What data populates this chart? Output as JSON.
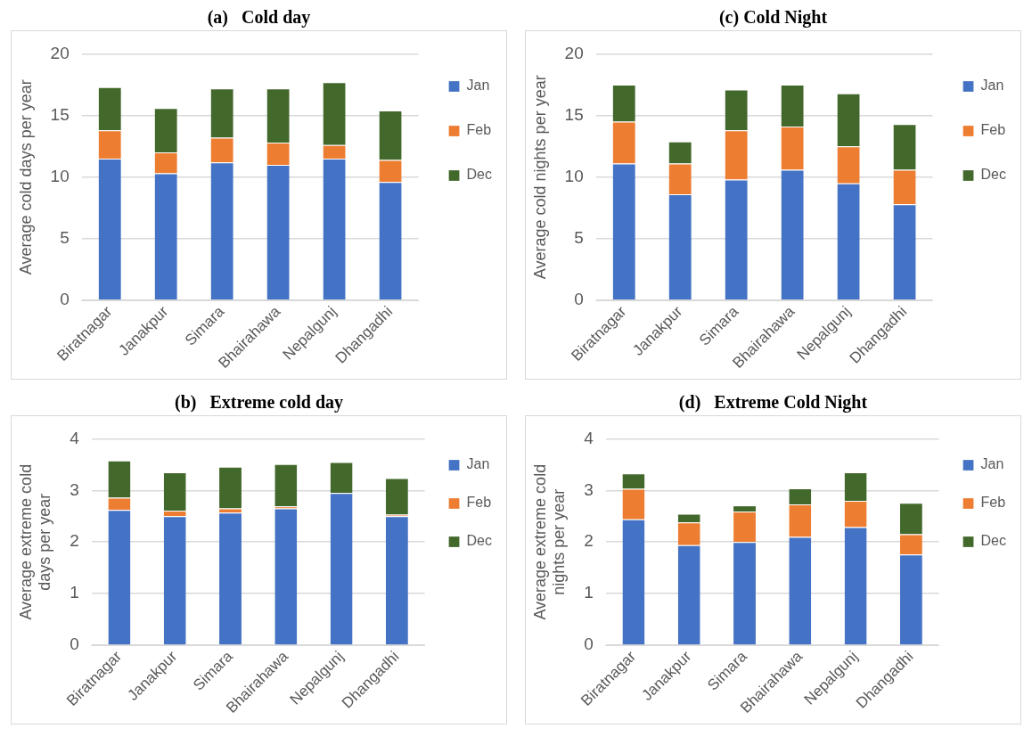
{
  "chart_data": [
    {
      "type": "bar",
      "title": "(a)   Cold day",
      "ylabel": "Average cold days per year",
      "categories": [
        "Biratnagar",
        "Janakpur",
        "Simara",
        "Bhairahawa",
        "Nepalgunj",
        "Dhangadhi"
      ],
      "stacked": true,
      "ylim": [
        0,
        20
      ],
      "yticks": [
        0,
        5,
        10,
        15,
        20
      ],
      "grid": "y",
      "legend": "right",
      "series": [
        {
          "name": "Jan",
          "color": "#4472c4",
          "values": [
            11.5,
            10.3,
            11.2,
            11.0,
            11.5,
            9.6
          ]
        },
        {
          "name": "Feb",
          "color": "#ed7d31",
          "values": [
            2.3,
            1.7,
            2.0,
            1.8,
            1.1,
            1.8
          ]
        },
        {
          "name": "Dec",
          "color": "#43682b",
          "values": [
            3.5,
            3.6,
            4.0,
            4.4,
            5.1,
            4.0
          ]
        }
      ]
    },
    {
      "type": "bar",
      "title": "(c) Cold Night",
      "ylabel": "Average cold nights per year",
      "categories": [
        "Biratnagar",
        "Janakpur",
        "Simara",
        "Bhairahawa",
        "Nepalgunj",
        "Dhangadhi"
      ],
      "stacked": true,
      "ylim": [
        0,
        20
      ],
      "yticks": [
        0,
        5,
        10,
        15,
        20
      ],
      "grid": "y",
      "legend": "right",
      "series": [
        {
          "name": "Jan",
          "color": "#4472c4",
          "values": [
            11.1,
            8.6,
            9.8,
            10.6,
            9.5,
            7.8
          ]
        },
        {
          "name": "Feb",
          "color": "#ed7d31",
          "values": [
            3.4,
            2.5,
            4.0,
            3.5,
            3.0,
            2.8
          ]
        },
        {
          "name": "Dec",
          "color": "#43682b",
          "values": [
            3.0,
            1.8,
            3.3,
            3.4,
            4.3,
            3.7
          ]
        }
      ]
    },
    {
      "type": "bar",
      "title": "(b)   Extreme cold day",
      "ylabel": "Average extreme cold days per year",
      "categories": [
        "Biratnagar",
        "Janakpur",
        "Simara",
        "Bhairahawa",
        "Nepalgunj",
        "Dhangadhi"
      ],
      "stacked": true,
      "ylim": [
        0,
        4
      ],
      "yticks": [
        0,
        1,
        2,
        3,
        4
      ],
      "grid": "y",
      "legend": "right",
      "series": [
        {
          "name": "Jan",
          "color": "#4472c4",
          "values": [
            2.62,
            2.5,
            2.57,
            2.65,
            2.95,
            2.5
          ]
        },
        {
          "name": "Feb",
          "color": "#ed7d31",
          "values": [
            0.24,
            0.11,
            0.08,
            0.04,
            0,
            0.03
          ]
        },
        {
          "name": "Dec",
          "color": "#43682b",
          "values": [
            0.72,
            0.74,
            0.81,
            0.82,
            0.6,
            0.71
          ]
        }
      ]
    },
    {
      "type": "bar",
      "title": "(d)   Extreme Cold Night",
      "ylabel": "Average extreme cold nights per year",
      "categories": [
        "Biratnagar",
        "Janakpur",
        "Simara",
        "Bhairahawa",
        "Nepalgunj",
        "Dhangadhi"
      ],
      "stacked": true,
      "ylim": [
        0,
        4
      ],
      "yticks": [
        0,
        1,
        2,
        3,
        4
      ],
      "grid": "y",
      "legend": "right",
      "series": [
        {
          "name": "Jan",
          "color": "#4472c4",
          "values": [
            2.44,
            1.94,
            2.0,
            2.1,
            2.29,
            1.76
          ]
        },
        {
          "name": "Feb",
          "color": "#ed7d31",
          "values": [
            0.59,
            0.44,
            0.59,
            0.63,
            0.51,
            0.39
          ]
        },
        {
          "name": "Dec",
          "color": "#43682b",
          "values": [
            0.3,
            0.17,
            0.12,
            0.31,
            0.55,
            0.61
          ]
        }
      ]
    }
  ]
}
